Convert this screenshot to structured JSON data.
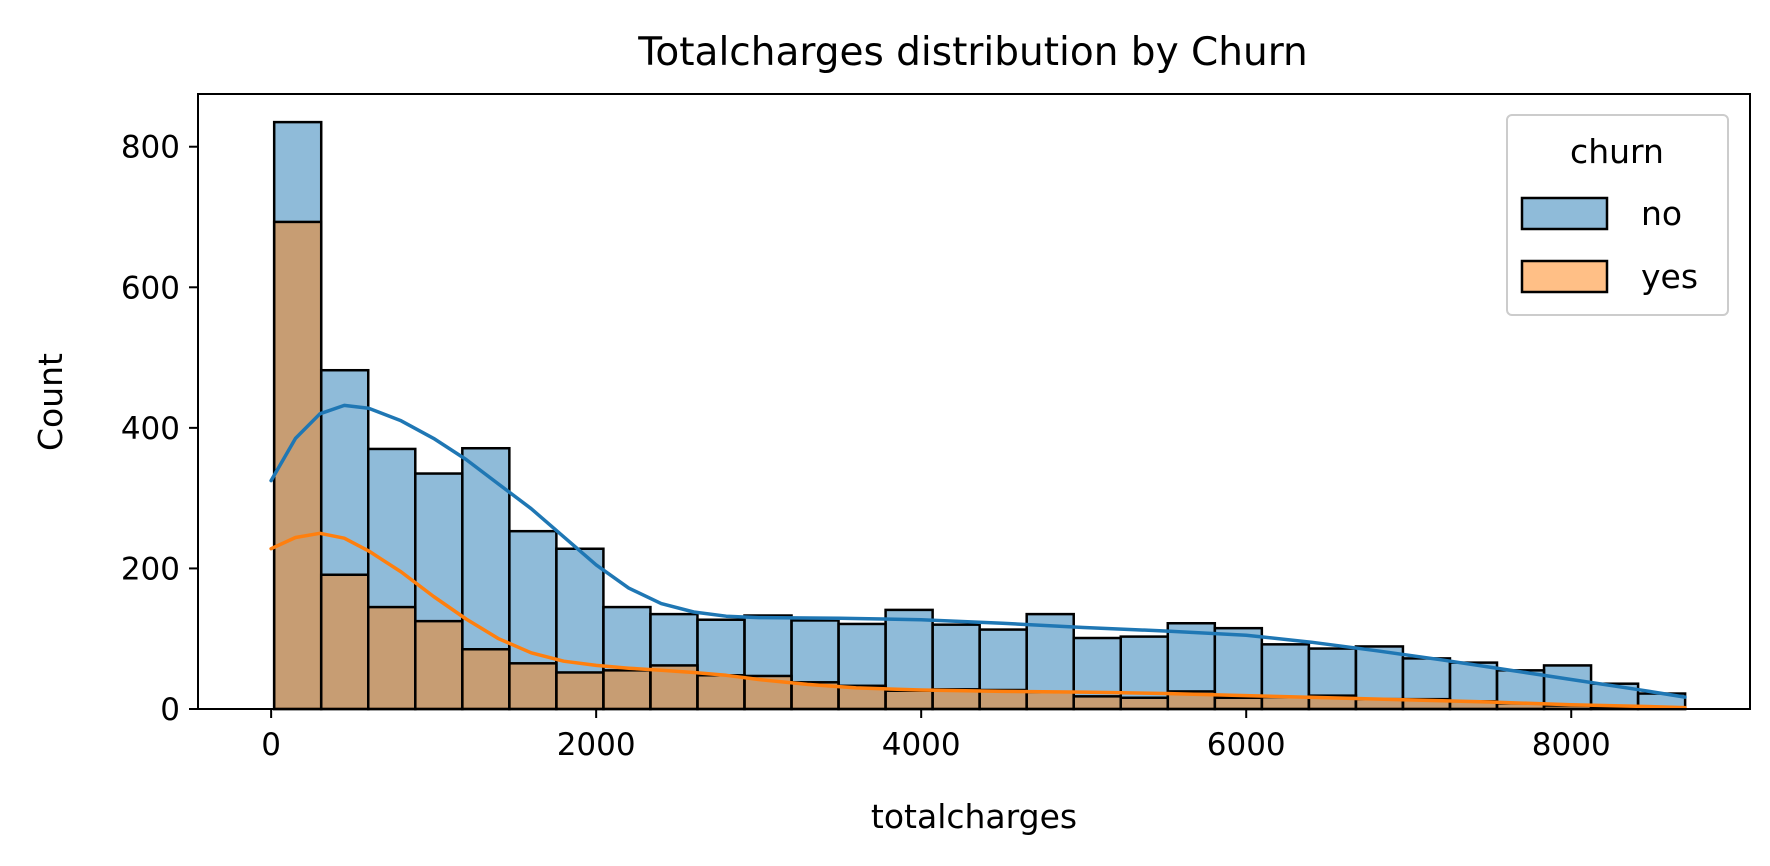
{
  "chart_data": {
    "type": "histogram",
    "title": "Totalcharges distribution by Churn",
    "xlabel": "totalcharges",
    "ylabel": "Count",
    "xlim": [
      -450,
      9100
    ],
    "ylim": [
      0,
      875
    ],
    "xticks": [
      0,
      2000,
      4000,
      6000,
      8000
    ],
    "yticks": [
      0,
      200,
      400,
      600,
      800
    ],
    "legend": {
      "title": "churn",
      "placement": "top-right"
    },
    "bin_edges": [
      18.8,
      308.2,
      597.6,
      887.0,
      1176.4,
      1465.8,
      1755.2,
      2044.6,
      2334.0,
      2623.4,
      2912.8,
      3202.2,
      3491.6,
      3781.0,
      4070.4,
      4359.8,
      4649.2,
      4938.6,
      5228.0,
      5517.4,
      5806.8,
      6096.2,
      6385.6,
      6675.0,
      6964.4,
      7253.8,
      7543.2,
      7832.6,
      8122.0,
      8411.4,
      8700.8
    ],
    "series": [
      {
        "name": "no",
        "color": "#1f77b4",
        "fill": "#8ab9dc",
        "values": [
          835,
          482,
          370,
          335,
          371,
          253,
          228,
          145,
          135,
          127,
          133,
          126,
          121,
          141,
          120,
          113,
          135,
          101,
          103,
          122,
          115,
          92,
          86,
          89,
          72,
          66,
          55,
          62,
          36,
          22
        ],
        "kde": [
          [
            0,
            325
          ],
          [
            150,
            385
          ],
          [
            300,
            420
          ],
          [
            450,
            432
          ],
          [
            600,
            428
          ],
          [
            800,
            410
          ],
          [
            1000,
            385
          ],
          [
            1200,
            355
          ],
          [
            1400,
            320
          ],
          [
            1600,
            285
          ],
          [
            1800,
            245
          ],
          [
            2000,
            205
          ],
          [
            2200,
            172
          ],
          [
            2400,
            150
          ],
          [
            2600,
            138
          ],
          [
            2800,
            132
          ],
          [
            3000,
            130
          ],
          [
            3500,
            129
          ],
          [
            4000,
            127
          ],
          [
            4500,
            122
          ],
          [
            5000,
            116
          ],
          [
            5500,
            111
          ],
          [
            6000,
            105
          ],
          [
            6400,
            95
          ],
          [
            6800,
            83
          ],
          [
            7200,
            70
          ],
          [
            7600,
            56
          ],
          [
            8000,
            42
          ],
          [
            8400,
            28
          ],
          [
            8700,
            17
          ]
        ]
      },
      {
        "name": "yes",
        "color": "#ff7f0e",
        "fill": "#ffbf86",
        "values": [
          693,
          191,
          145,
          125,
          85,
          65,
          52,
          55,
          62,
          48,
          47,
          38,
          33,
          26,
          28,
          27,
          24,
          18,
          16,
          25,
          16,
          17,
          19,
          14,
          14,
          11,
          8,
          5,
          3,
          2
        ],
        "kde": [
          [
            0,
            228
          ],
          [
            150,
            244
          ],
          [
            300,
            250
          ],
          [
            450,
            243
          ],
          [
            600,
            225
          ],
          [
            800,
            195
          ],
          [
            1000,
            160
          ],
          [
            1200,
            128
          ],
          [
            1400,
            100
          ],
          [
            1600,
            80
          ],
          [
            1800,
            68
          ],
          [
            2000,
            62
          ],
          [
            2200,
            58
          ],
          [
            2400,
            55
          ],
          [
            2600,
            52
          ],
          [
            2800,
            48
          ],
          [
            3000,
            42
          ],
          [
            3300,
            35
          ],
          [
            3600,
            30
          ],
          [
            4000,
            27
          ],
          [
            4500,
            25
          ],
          [
            5000,
            24
          ],
          [
            5500,
            22
          ],
          [
            6000,
            19
          ],
          [
            6500,
            16
          ],
          [
            7000,
            13
          ],
          [
            7500,
            10
          ],
          [
            8000,
            6
          ],
          [
            8400,
            4
          ],
          [
            8700,
            2
          ]
        ]
      }
    ]
  }
}
